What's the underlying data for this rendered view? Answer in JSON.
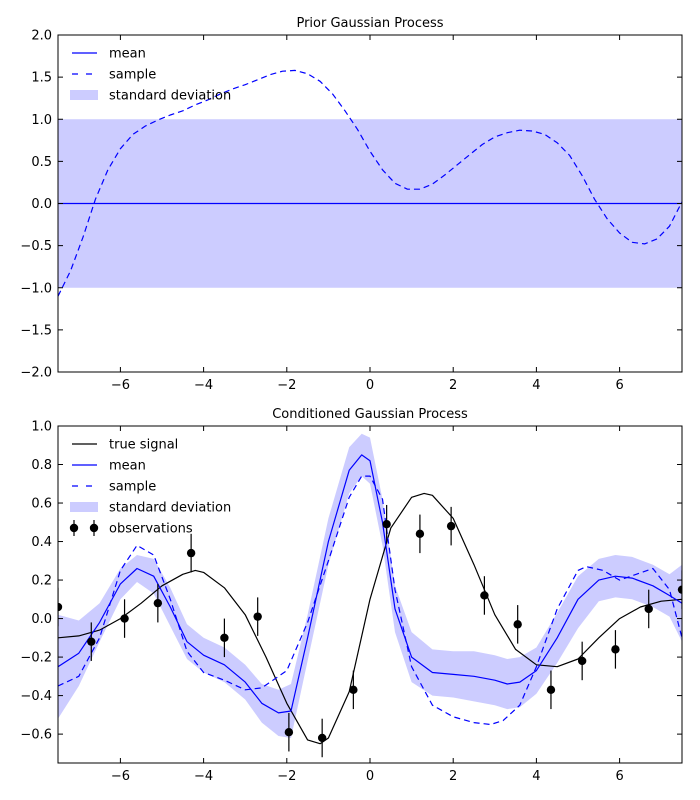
{
  "chart_data": [
    {
      "type": "line",
      "title": "Prior Gaussian Process",
      "xlim": [
        -7.5,
        7.5
      ],
      "ylim": [
        -2.0,
        2.0
      ],
      "x_ticks": [
        -6,
        -4,
        -2,
        0,
        2,
        4,
        6
      ],
      "y_ticks": [
        -2.0,
        -1.5,
        -1.0,
        -0.5,
        0.0,
        0.5,
        1.0,
        1.5,
        2.0
      ],
      "grid": false,
      "legend": {
        "placement": "top-left",
        "entries": [
          "mean",
          "sample",
          "standard deviation"
        ]
      },
      "series": [
        {
          "name": "mean",
          "style": "solid",
          "color": "#0000ff",
          "x": [
            -7.5,
            7.5
          ],
          "y": [
            0.0,
            0.0
          ]
        },
        {
          "name": "sample",
          "style": "dashed",
          "color": "#0000ff",
          "x": [
            -7.5,
            -7.2,
            -6.9,
            -6.6,
            -6.3,
            -6.0,
            -5.7,
            -5.4,
            -5.1,
            -4.8,
            -4.5,
            -4.2,
            -3.9,
            -3.6,
            -3.3,
            -3.0,
            -2.7,
            -2.4,
            -2.1,
            -1.8,
            -1.5,
            -1.2,
            -0.9,
            -0.6,
            -0.3,
            0.0,
            0.3,
            0.6,
            0.9,
            1.2,
            1.5,
            1.8,
            2.1,
            2.4,
            2.7,
            3.0,
            3.3,
            3.6,
            3.9,
            4.2,
            4.5,
            4.8,
            5.1,
            5.4,
            5.7,
            6.0,
            6.3,
            6.6,
            6.9,
            7.2,
            7.5
          ],
          "y": [
            -1.1,
            -0.8,
            -0.4,
            0.05,
            0.4,
            0.65,
            0.82,
            0.92,
            0.99,
            1.05,
            1.1,
            1.17,
            1.23,
            1.3,
            1.36,
            1.41,
            1.47,
            1.53,
            1.57,
            1.58,
            1.54,
            1.45,
            1.3,
            1.1,
            0.88,
            0.62,
            0.4,
            0.24,
            0.17,
            0.17,
            0.23,
            0.34,
            0.46,
            0.58,
            0.7,
            0.79,
            0.84,
            0.87,
            0.86,
            0.82,
            0.72,
            0.57,
            0.33,
            0.05,
            -0.18,
            -0.35,
            -0.46,
            -0.48,
            -0.42,
            -0.27,
            0.02
          ]
        },
        {
          "name": "standard deviation",
          "style": "band",
          "color": "#ccccff",
          "x": [
            -7.5,
            7.5
          ],
          "lower": [
            -1.0,
            -1.0
          ],
          "upper": [
            1.0,
            1.0
          ]
        }
      ]
    },
    {
      "type": "line",
      "title": "Conditioned Gaussian Process",
      "xlim": [
        -7.5,
        7.5
      ],
      "ylim": [
        -0.75,
        1.0
      ],
      "x_ticks": [
        -6,
        -4,
        -2,
        0,
        2,
        4,
        6
      ],
      "y_ticks": [
        -0.6,
        -0.4,
        -0.2,
        0.0,
        0.2,
        0.4,
        0.6,
        0.8,
        1.0
      ],
      "grid": false,
      "legend": {
        "placement": "top-left",
        "entries": [
          "true signal",
          "mean",
          "sample",
          "standard deviation",
          "observations"
        ]
      },
      "series": [
        {
          "name": "true signal",
          "style": "solid",
          "color": "#000000",
          "x": [
            -7.5,
            -7.0,
            -6.5,
            -6.0,
            -5.5,
            -5.0,
            -4.5,
            -4.2,
            -4.0,
            -3.5,
            -3.0,
            -2.5,
            -2.0,
            -1.5,
            -1.2,
            -1.0,
            -0.5,
            0.0,
            0.5,
            1.0,
            1.3,
            1.5,
            2.0,
            2.5,
            3.0,
            3.5,
            4.0,
            4.5,
            5.0,
            5.5,
            6.0,
            6.5,
            7.0,
            7.5
          ],
          "y": [
            -0.1,
            -0.09,
            -0.06,
            0.0,
            0.08,
            0.17,
            0.23,
            0.25,
            0.24,
            0.16,
            0.02,
            -0.2,
            -0.44,
            -0.63,
            -0.65,
            -0.62,
            -0.38,
            0.1,
            0.47,
            0.63,
            0.65,
            0.64,
            0.52,
            0.28,
            0.02,
            -0.16,
            -0.24,
            -0.25,
            -0.21,
            -0.1,
            0.0,
            0.06,
            0.09,
            0.1
          ]
        },
        {
          "name": "mean",
          "style": "solid",
          "color": "#0000ff",
          "x": [
            -7.5,
            -7.0,
            -6.5,
            -6.0,
            -5.6,
            -5.2,
            -4.8,
            -4.4,
            -4.0,
            -3.5,
            -3.0,
            -2.6,
            -2.2,
            -1.9,
            -1.5,
            -1.0,
            -0.5,
            -0.2,
            0.0,
            0.3,
            0.6,
            1.0,
            1.5,
            2.0,
            2.5,
            3.0,
            3.3,
            3.6,
            4.0,
            4.5,
            5.0,
            5.5,
            5.9,
            6.3,
            6.8,
            7.2,
            7.5
          ],
          "y": [
            -0.25,
            -0.18,
            -0.02,
            0.18,
            0.26,
            0.22,
            0.06,
            -0.12,
            -0.19,
            -0.24,
            -0.33,
            -0.44,
            -0.49,
            -0.48,
            -0.1,
            0.4,
            0.77,
            0.85,
            0.82,
            0.5,
            0.05,
            -0.2,
            -0.28,
            -0.29,
            -0.3,
            -0.32,
            -0.34,
            -0.33,
            -0.27,
            -0.1,
            0.1,
            0.2,
            0.22,
            0.21,
            0.17,
            0.12,
            0.08
          ]
        },
        {
          "name": "sample",
          "style": "dashed",
          "color": "#0000ff",
          "x": [
            -7.5,
            -7.0,
            -6.5,
            -6.0,
            -5.6,
            -5.2,
            -4.8,
            -4.4,
            -4.0,
            -3.5,
            -3.0,
            -2.6,
            -2.0,
            -1.5,
            -1.0,
            -0.5,
            -0.2,
            0.0,
            0.3,
            0.6,
            1.0,
            1.5,
            2.0,
            2.5,
            2.9,
            3.2,
            3.6,
            4.0,
            4.5,
            5.0,
            5.2,
            5.6,
            6.0,
            6.4,
            6.8,
            7.2,
            7.5
          ],
          "y": [
            -0.35,
            -0.3,
            -0.1,
            0.25,
            0.38,
            0.33,
            0.1,
            -0.17,
            -0.28,
            -0.32,
            -0.37,
            -0.36,
            -0.27,
            -0.02,
            0.3,
            0.63,
            0.74,
            0.74,
            0.62,
            0.15,
            -0.25,
            -0.45,
            -0.51,
            -0.54,
            -0.55,
            -0.53,
            -0.45,
            -0.25,
            0.05,
            0.25,
            0.27,
            0.25,
            0.2,
            0.23,
            0.26,
            0.15,
            -0.1
          ]
        },
        {
          "name": "standard deviation",
          "style": "band",
          "color": "#ccccff",
          "x": [
            -7.5,
            -7.0,
            -6.5,
            -6.0,
            -5.6,
            -5.2,
            -4.8,
            -4.4,
            -4.0,
            -3.5,
            -3.0,
            -2.6,
            -2.2,
            -1.9,
            -1.5,
            -1.0,
            -0.5,
            -0.2,
            0.0,
            0.3,
            0.6,
            1.0,
            1.5,
            2.0,
            2.5,
            3.0,
            3.3,
            3.6,
            4.0,
            4.5,
            5.0,
            5.5,
            5.9,
            6.3,
            6.8,
            7.2,
            7.5
          ],
          "lower": [
            -0.52,
            -0.35,
            -0.12,
            0.1,
            0.19,
            0.13,
            -0.04,
            -0.21,
            -0.28,
            -0.33,
            -0.42,
            -0.54,
            -0.61,
            -0.62,
            -0.22,
            0.28,
            0.65,
            0.74,
            0.7,
            0.38,
            -0.07,
            -0.33,
            -0.4,
            -0.41,
            -0.43,
            -0.45,
            -0.47,
            -0.46,
            -0.39,
            -0.23,
            -0.05,
            0.09,
            0.11,
            0.1,
            0.06,
            0.01,
            -0.12
          ],
          "upper": [
            0.02,
            -0.01,
            0.08,
            0.26,
            0.33,
            0.31,
            0.16,
            -0.03,
            -0.1,
            -0.15,
            -0.24,
            -0.34,
            -0.37,
            -0.34,
            0.02,
            0.52,
            0.89,
            0.96,
            0.94,
            0.62,
            0.17,
            -0.07,
            -0.16,
            -0.17,
            -0.17,
            -0.19,
            -0.21,
            -0.2,
            -0.15,
            0.03,
            0.22,
            0.31,
            0.33,
            0.32,
            0.28,
            0.23,
            0.28
          ]
        },
        {
          "name": "observations",
          "style": "points",
          "color": "#000000",
          "x": [
            -7.5,
            -6.7,
            -5.9,
            -5.1,
            -4.3,
            -3.5,
            -2.7,
            -1.95,
            -1.15,
            -0.4,
            0.4,
            1.2,
            1.95,
            2.75,
            3.55,
            4.35,
            5.1,
            5.9,
            6.7,
            7.5
          ],
          "y": [
            0.06,
            -0.12,
            0.0,
            0.08,
            0.34,
            -0.1,
            0.01,
            -0.59,
            -0.62,
            -0.37,
            0.49,
            0.44,
            0.48,
            0.12,
            -0.03,
            -0.37,
            -0.22,
            -0.16,
            0.05,
            0.15
          ],
          "yerr": 0.1
        }
      ]
    }
  ]
}
